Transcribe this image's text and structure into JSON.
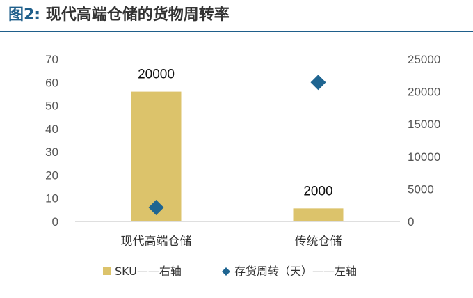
{
  "header": {
    "figure_label": "图2:",
    "title_text": "现代高端仓储的货物周转率"
  },
  "chart_data": {
    "type": "bar",
    "title": "图2: 现代高端仓储的货物周转率",
    "categories": [
      "现代高端仓储",
      "传统仓储"
    ],
    "series": [
      {
        "name": "SKU——右轴",
        "kind": "bar",
        "axis": "right",
        "values": [
          20000,
          2000
        ],
        "data_labels": [
          "20000",
          "2000"
        ],
        "color": "#dcc36b"
      },
      {
        "name": "存货周转（天）——左轴",
        "kind": "scatter",
        "marker": "diamond",
        "axis": "left",
        "values": [
          6,
          60
        ],
        "color": "#1f6591"
      }
    ],
    "left_axis": {
      "ylim": [
        0,
        70
      ],
      "ticks": [
        "0",
        "10",
        "20",
        "30",
        "40",
        "50",
        "60",
        "70"
      ]
    },
    "right_axis": {
      "ylim": [
        0,
        25000
      ],
      "ticks": [
        "0",
        "5000",
        "10000",
        "15000",
        "20000",
        "25000"
      ]
    },
    "grid": false,
    "legend_position": "bottom"
  }
}
